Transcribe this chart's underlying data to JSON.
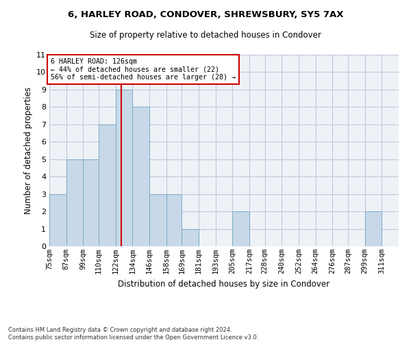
{
  "title1": "6, HARLEY ROAD, CONDOVER, SHREWSBURY, SY5 7AX",
  "title2": "Size of property relative to detached houses in Condover",
  "xlabel": "Distribution of detached houses by size in Condover",
  "ylabel": "Number of detached properties",
  "footnote": "Contains HM Land Registry data © Crown copyright and database right 2024.\nContains public sector information licensed under the Open Government Licence v3.0.",
  "bin_labels": [
    "75sqm",
    "87sqm",
    "99sqm",
    "110sqm",
    "122sqm",
    "134sqm",
    "146sqm",
    "158sqm",
    "169sqm",
    "181sqm",
    "193sqm",
    "205sqm",
    "217sqm",
    "228sqm",
    "240sqm",
    "252sqm",
    "264sqm",
    "276sqm",
    "287sqm",
    "299sqm",
    "311sqm"
  ],
  "bin_edges": [
    75,
    87,
    99,
    110,
    122,
    134,
    146,
    158,
    169,
    181,
    193,
    205,
    217,
    228,
    240,
    252,
    264,
    276,
    287,
    299,
    311,
    323
  ],
  "values": [
    3,
    5,
    5,
    7,
    9,
    8,
    3,
    3,
    1,
    0,
    0,
    2,
    0,
    0,
    0,
    0,
    0,
    0,
    0,
    2,
    0
  ],
  "bar_color": "#c8d8e8",
  "bar_edge_color": "#7aaac8",
  "grid_color": "#c0c8d8",
  "ref_line_x": 126,
  "ref_line_color": "#cc0000",
  "annotation_text": "6 HARLEY ROAD: 126sqm\n← 44% of detached houses are smaller (22)\n56% of semi-detached houses are larger (28) →",
  "annotation_box_color": "#cc0000",
  "ylim": [
    0,
    11
  ],
  "yticks": [
    0,
    1,
    2,
    3,
    4,
    5,
    6,
    7,
    8,
    9,
    10,
    11
  ],
  "background_color": "#eef2f7",
  "title1_fontsize": 9.5,
  "title2_fontsize": 8.5
}
